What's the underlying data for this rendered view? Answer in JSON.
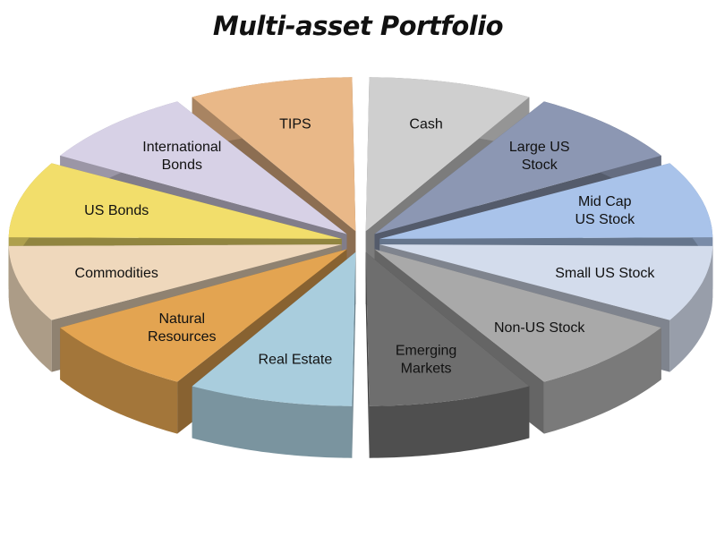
{
  "chart_data": {
    "type": "pie",
    "title": "Multi-asset Portfolio",
    "categories": [
      "Cash",
      "Large US Stock",
      "Mid Cap US Stock",
      "Small US Stock",
      "Non-US Stock",
      "Emerging Markets",
      "Real Estate",
      "Natural Resources",
      "Commodities",
      "US Bonds",
      "International Bonds",
      "TIPS"
    ],
    "values": [
      1,
      1,
      1,
      1,
      1,
      1,
      1,
      1,
      1,
      1,
      1,
      1
    ],
    "slices": [
      {
        "label": "Cash",
        "lines": [
          "Cash"
        ],
        "color": "#cfcfcf"
      },
      {
        "label": "Large US Stock",
        "lines": [
          "Large US",
          "Stock"
        ],
        "color": "#8c97b3"
      },
      {
        "label": "Mid Cap US Stock",
        "lines": [
          "Mid Cap",
          "US Stock"
        ],
        "color": "#a9c3ea"
      },
      {
        "label": "Small US Stock",
        "lines": [
          "Small US Stock"
        ],
        "color": "#d3dcec"
      },
      {
        "label": "Non-US Stock",
        "lines": [
          "Non-US Stock"
        ],
        "color": "#a9a9a9"
      },
      {
        "label": "Emerging Markets",
        "lines": [
          "Emerging",
          "Markets"
        ],
        "color": "#6e6e6e"
      },
      {
        "label": "Real Estate",
        "lines": [
          "Real Estate"
        ],
        "color": "#a9cddd"
      },
      {
        "label": "Natural Resources",
        "lines": [
          "Natural",
          "Resources"
        ],
        "color": "#e3a451"
      },
      {
        "label": "Commodities",
        "lines": [
          "Commodities"
        ],
        "color": "#efd8bc"
      },
      {
        "label": "US Bonds",
        "lines": [
          "US Bonds"
        ],
        "color": "#f2de6b"
      },
      {
        "label": "International Bonds",
        "lines": [
          "International",
          "Bonds"
        ],
        "color": "#d7d1e6"
      },
      {
        "label": "TIPS",
        "lines": [
          "TIPS"
        ],
        "color": "#e9b888"
      }
    ],
    "legend": "none",
    "style": "3d-exploded"
  }
}
